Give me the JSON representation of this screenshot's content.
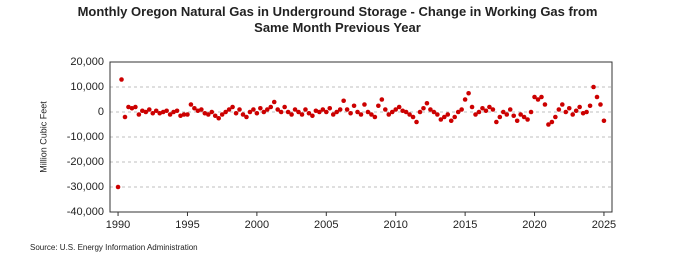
{
  "chart_data": {
    "type": "scatter",
    "title": "Monthly Oregon Natural Gas in Underground Storage - Change in Working Gas from Same Month Previous Year",
    "ylabel": "Million Cubic Feet",
    "source": "Source: U.S. Energy Information Administration",
    "xlim": [
      1989.42,
      2025.58
    ],
    "xticks": [
      1990,
      1995,
      2000,
      2005,
      2010,
      2015,
      2020,
      2025
    ],
    "ylim": [
      -40000,
      20000
    ],
    "yticks": [
      {
        "value": -40000,
        "label": "-40,000"
      },
      {
        "value": -30000,
        "label": "-30,000"
      },
      {
        "value": -20000,
        "label": "-20,000"
      },
      {
        "value": -10000,
        "label": "-10,000"
      },
      0,
      {
        "value": 10000,
        "label": "10,000"
      },
      {
        "value": 20000,
        "label": "20,000"
      }
    ],
    "grid": true,
    "x": [
      1990,
      1990.25,
      1990.5,
      1990.75,
      1991,
      1991.25,
      1991.5,
      1991.75,
      1992,
      1992.25,
      1992.5,
      1992.75,
      1993,
      1993.25,
      1993.5,
      1993.75,
      1994,
      1994.25,
      1994.5,
      1994.75,
      1995,
      1995.25,
      1995.5,
      1995.75,
      1996,
      1996.25,
      1996.5,
      1996.75,
      1997,
      1997.25,
      1997.5,
      1997.75,
      1998,
      1998.25,
      1998.5,
      1998.75,
      1999,
      1999.25,
      1999.5,
      1999.75,
      2000,
      2000.25,
      2000.5,
      2000.75,
      2001,
      2001.25,
      2001.5,
      2001.75,
      2002,
      2002.25,
      2002.5,
      2002.75,
      2003,
      2003.25,
      2003.5,
      2003.75,
      2004,
      2004.25,
      2004.5,
      2004.75,
      2005,
      2005.25,
      2005.5,
      2005.75,
      2006,
      2006.25,
      2006.5,
      2006.75,
      2007,
      2007.25,
      2007.5,
      2007.75,
      2008,
      2008.25,
      2008.5,
      2008.75,
      2009,
      2009.25,
      2009.5,
      2009.75,
      2010,
      2010.25,
      2010.5,
      2010.75,
      2011,
      2011.25,
      2011.5,
      2011.75,
      2012,
      2012.25,
      2012.5,
      2012.75,
      2013,
      2013.25,
      2013.5,
      2013.75,
      2014,
      2014.25,
      2014.5,
      2014.75,
      2015,
      2015.25,
      2015.5,
      2015.75,
      2016,
      2016.25,
      2016.5,
      2016.75,
      2017,
      2017.25,
      2017.5,
      2017.75,
      2018,
      2018.25,
      2018.5,
      2018.75,
      2019,
      2019.25,
      2019.5,
      2019.75,
      2020,
      2020.25,
      2020.5,
      2020.75,
      2021,
      2021.25,
      2021.5,
      2021.75,
      2022,
      2022.25,
      2022.5,
      2022.75,
      2023,
      2023.25,
      2023.5,
      2023.75,
      2024,
      2024.25,
      2024.5,
      2024.75,
      2025
    ],
    "series": [
      {
        "color": "#cc0000",
        "values": [
          -30000,
          13000,
          -2000,
          2000,
          1500,
          2000,
          -1000,
          500,
          0,
          1000,
          -500,
          500,
          -500,
          0,
          500,
          -1000,
          0,
          500,
          -1500,
          -1000,
          -1000,
          3000,
          1500,
          500,
          1000,
          -500,
          -1000,
          0,
          -1500,
          -2500,
          -1000,
          0,
          1000,
          2000,
          -500,
          1000,
          -1000,
          -2000,
          0,
          1000,
          -500,
          1500,
          0,
          1000,
          2000,
          4000,
          1000,
          0,
          2000,
          0,
          -1000,
          1000,
          0,
          -1000,
          1000,
          -500,
          -1500,
          500,
          0,
          1000,
          0,
          1500,
          -1000,
          0,
          1000,
          4500,
          1000,
          -500,
          2500,
          0,
          -1000,
          3000,
          0,
          -1000,
          -2000,
          2500,
          5000,
          1000,
          -1000,
          0,
          1000,
          2000,
          500,
          0,
          -1000,
          -2000,
          -4000,
          0,
          1500,
          3500,
          1000,
          0,
          -1000,
          -3000,
          -2000,
          -1000,
          -3500,
          -2000,
          0,
          1000,
          5000,
          7500,
          2000,
          -1000,
          0,
          1500,
          500,
          2000,
          1000,
          -4000,
          -2000,
          0,
          -1000,
          1000,
          -1500,
          -3500,
          -1000,
          -2000,
          -3000,
          0,
          6000,
          5000,
          6000,
          3000,
          -5000,
          -4000,
          -2000,
          1000,
          3000,
          0,
          1500,
          -1000,
          500,
          2000,
          -500,
          0,
          2500,
          10000,
          6000,
          3000,
          -3500
        ]
      }
    ]
  }
}
